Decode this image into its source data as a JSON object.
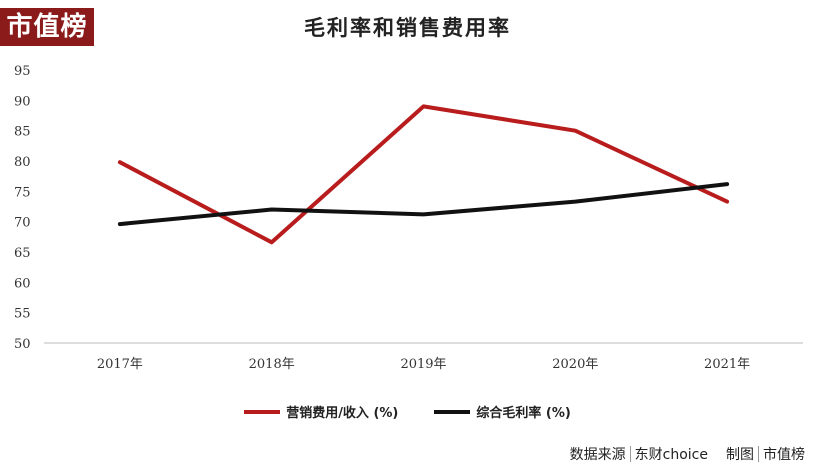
{
  "logo": "市值榜",
  "chart_data": {
    "type": "line",
    "title": "毛利率和销售费用率",
    "categories": [
      "2017年",
      "2018年",
      "2019年",
      "2020年",
      "2021年"
    ],
    "ylim": [
      50,
      95
    ],
    "yticks": [
      50,
      55,
      60,
      65,
      70,
      75,
      80,
      85,
      90,
      95
    ],
    "grid": false,
    "legend_position": "bottom",
    "series": [
      {
        "name": "营销费用/收入 (%)",
        "color": "#b81c1c",
        "values": [
          79.8,
          66.6,
          89.0,
          85.0,
          73.3
        ]
      },
      {
        "name": "综合毛利率 (%)",
        "color": "#111111",
        "values": [
          69.6,
          72.0,
          71.2,
          73.3,
          76.2
        ]
      }
    ]
  },
  "footer": {
    "source_label": "数据来源",
    "source_value": "东财choice",
    "made_label": "制图",
    "made_value": "市值榜"
  }
}
